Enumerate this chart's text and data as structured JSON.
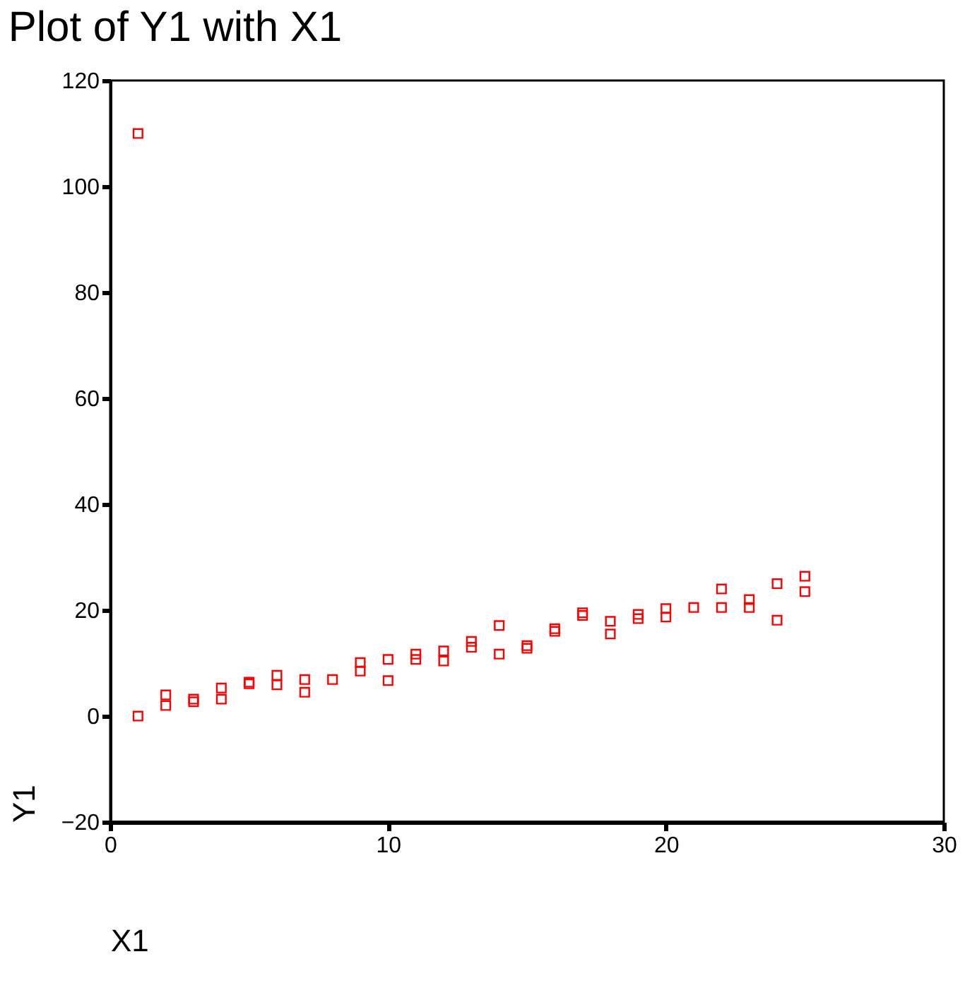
{
  "chart_data": {
    "type": "scatter",
    "title": "Plot of Y1 with X1",
    "xlabel": "X1",
    "ylabel": "Y1",
    "x": [
      1,
      1,
      2,
      2,
      3,
      3,
      4,
      4,
      5,
      5,
      6,
      6,
      7,
      7,
      8,
      9,
      9,
      10,
      10,
      11,
      11,
      12,
      12,
      13,
      13,
      14,
      14,
      15,
      15,
      16,
      16,
      17,
      17,
      18,
      18,
      19,
      19,
      20,
      20,
      21,
      22,
      22,
      23,
      23,
      24,
      24,
      25,
      25
    ],
    "series": [
      {
        "color": "#ff0000",
        "values": [
          110,
          0,
          4,
          2,
          3.2,
          2.7,
          5.3,
          3.2,
          6.4,
          6.1,
          7.7,
          5.9,
          6.9,
          4.5,
          6.9,
          10.1,
          8.5,
          10.7,
          6.7,
          11.7,
          10.7,
          12.3,
          10.4,
          14.1,
          13,
          17.1,
          11.7,
          13.3,
          12.8,
          16.5,
          16,
          19.5,
          19,
          17.9,
          15.5,
          19.2,
          18.4,
          20.3,
          18.7,
          20.5,
          24,
          20.5,
          22,
          20.5,
          25,
          18.1,
          26.4,
          23.5
        ]
      }
    ],
    "xlim": [
      0,
      30
    ],
    "xticks": [
      0,
      10,
      20,
      30
    ],
    "ylim": [
      -20,
      120
    ],
    "yticks": [
      -20,
      0,
      20,
      40,
      60,
      80,
      100,
      120
    ],
    "grid": false,
    "legend": false,
    "marker": "square"
  }
}
